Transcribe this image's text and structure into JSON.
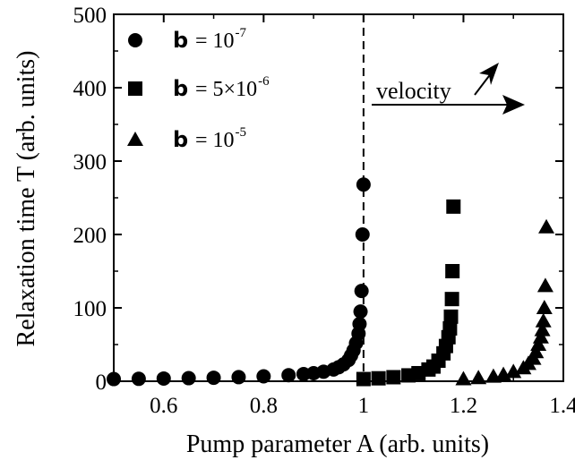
{
  "chart_data": {
    "type": "scatter",
    "xlabel": "Pump parameter A (arb. units)",
    "ylabel": "Relaxation time T (arb. units)",
    "xlim": [
      0.5,
      1.4
    ],
    "ylim": [
      0,
      500
    ],
    "xticks": [
      0.6,
      0.8,
      1,
      1.2,
      1.4
    ],
    "xtick_labels": [
      "0.6",
      "0.8",
      "1",
      "1.2",
      "1.4"
    ],
    "yticks": [
      0,
      100,
      200,
      300,
      400,
      500
    ],
    "ytick_labels": [
      "0",
      "100",
      "200",
      "300",
      "400",
      "500"
    ],
    "grid": false,
    "legend_position": "top-left",
    "vertical_line": {
      "x": 1,
      "style": "dashed"
    },
    "annotation": "velocity",
    "series": [
      {
        "name_var": "b",
        "name_eq": "= 10",
        "name_exp": "-7",
        "marker": "circle",
        "points": [
          [
            0.5,
            3
          ],
          [
            0.55,
            3.3
          ],
          [
            0.6,
            3.7
          ],
          [
            0.65,
            4.2
          ],
          [
            0.7,
            4.8
          ],
          [
            0.75,
            5.6
          ],
          [
            0.8,
            6.7
          ],
          [
            0.85,
            8.3
          ],
          [
            0.88,
            9.8
          ],
          [
            0.9,
            11
          ],
          [
            0.92,
            13
          ],
          [
            0.94,
            16
          ],
          [
            0.95,
            19
          ],
          [
            0.96,
            23
          ],
          [
            0.97,
            29
          ],
          [
            0.975,
            35
          ],
          [
            0.98,
            42
          ],
          [
            0.985,
            52
          ],
          [
            0.99,
            65
          ],
          [
            0.992,
            78
          ],
          [
            0.994,
            95
          ],
          [
            0.996,
            123
          ],
          [
            0.998,
            200
          ],
          [
            1.0,
            268
          ]
        ]
      },
      {
        "name_var": "b",
        "name_eq": "= 5×10",
        "name_exp": "-6",
        "marker": "square",
        "points": [
          [
            1.0,
            3
          ],
          [
            1.03,
            4
          ],
          [
            1.06,
            5.5
          ],
          [
            1.09,
            8
          ],
          [
            1.11,
            11
          ],
          [
            1.13,
            16
          ],
          [
            1.14,
            20
          ],
          [
            1.15,
            28
          ],
          [
            1.16,
            38
          ],
          [
            1.165,
            48
          ],
          [
            1.17,
            60
          ],
          [
            1.173,
            72
          ],
          [
            1.175,
            88
          ],
          [
            1.177,
            112
          ],
          [
            1.178,
            150
          ],
          [
            1.18,
            238
          ]
        ]
      },
      {
        "name_var": "b",
        "name_eq": "= 10",
        "name_exp": "-5",
        "marker": "triangle",
        "points": [
          [
            1.2,
            3
          ],
          [
            1.23,
            4.5
          ],
          [
            1.26,
            6.5
          ],
          [
            1.28,
            9
          ],
          [
            1.3,
            13
          ],
          [
            1.32,
            18
          ],
          [
            1.33,
            24
          ],
          [
            1.34,
            31
          ],
          [
            1.345,
            40
          ],
          [
            1.35,
            50
          ],
          [
            1.355,
            60
          ],
          [
            1.358,
            70
          ],
          [
            1.36,
            82
          ],
          [
            1.362,
            100
          ],
          [
            1.364,
            130
          ],
          [
            1.366,
            210
          ]
        ]
      }
    ]
  }
}
